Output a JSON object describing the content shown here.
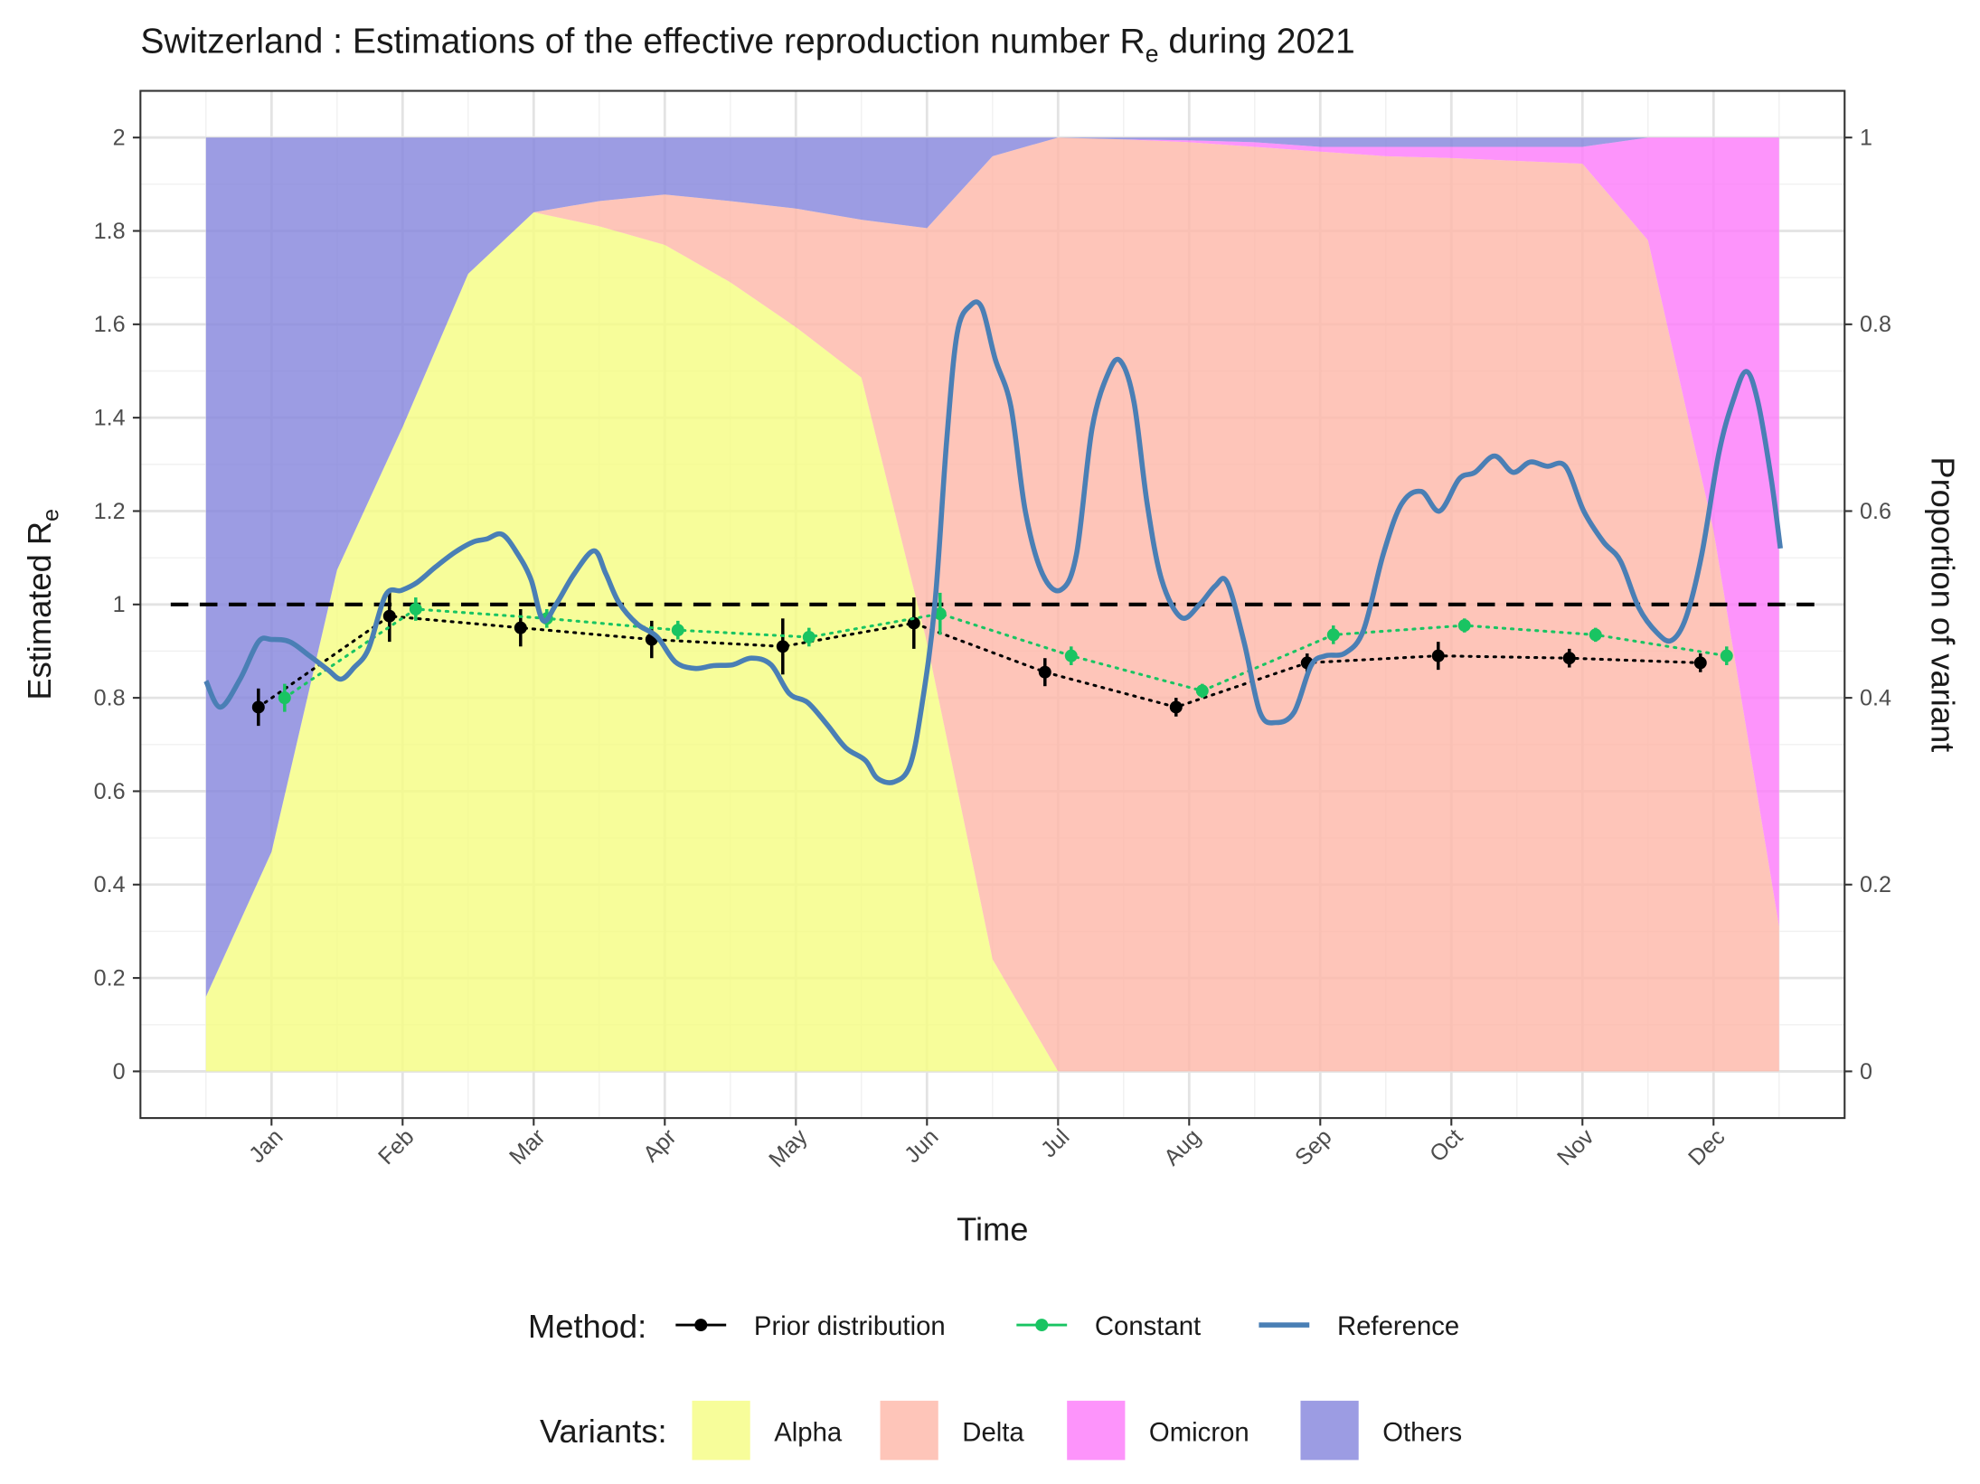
{
  "chart_data": {
    "type": "line",
    "title_parts": [
      "Switzerland : Estimations of the effective reproduction number R",
      "e",
      " during 2021"
    ],
    "xlabel": "Time",
    "ylabel_parts": [
      "Estimated R",
      "e"
    ],
    "y2label": "Proportion of variant",
    "xlim": [
      0,
      13
    ],
    "xticks": [
      {
        "value": 1,
        "label": "Jan"
      },
      {
        "value": 2,
        "label": "Feb"
      },
      {
        "value": 3,
        "label": "Mar"
      },
      {
        "value": 4,
        "label": "Apr"
      },
      {
        "value": 5,
        "label": "May"
      },
      {
        "value": 6,
        "label": "Jun"
      },
      {
        "value": 7,
        "label": "Jul"
      },
      {
        "value": 8,
        "label": "Aug"
      },
      {
        "value": 9,
        "label": "Sep"
      },
      {
        "value": 10,
        "label": "Oct"
      },
      {
        "value": 11,
        "label": "Nov"
      },
      {
        "value": 12,
        "label": "Dec"
      }
    ],
    "ylim": [
      -0.1,
      2.1
    ],
    "yticks": [
      0,
      0.2,
      0.4,
      0.6,
      0.8,
      1,
      1.2,
      1.4,
      1.6,
      1.8,
      2
    ],
    "y2lim": [
      -0.05,
      1.05
    ],
    "y2ticks": [
      0,
      0.2,
      0.4,
      0.6,
      0.8,
      1
    ],
    "grid": true,
    "hline": 1,
    "legend_position": "bottom",
    "method_legend_title": "Method:",
    "variant_legend_title": "Variants:",
    "series": [
      {
        "name": "Prior distribution",
        "type": "pointrange",
        "color": "#000000",
        "x": [
          1,
          2,
          3,
          4,
          5,
          6,
          7,
          8,
          9,
          10,
          11,
          12
        ],
        "values": [
          0.78,
          0.975,
          0.95,
          0.925,
          0.91,
          0.96,
          0.855,
          0.78,
          0.875,
          0.89,
          0.885,
          0.875
        ],
        "errors": [
          0.04,
          0.055,
          0.04,
          0.04,
          0.06,
          0.055,
          0.03,
          0.02,
          0.02,
          0.03,
          0.02,
          0.02
        ]
      },
      {
        "name": "Constant",
        "type": "pointrange",
        "color": "#19c462",
        "x": [
          1,
          2,
          3,
          4,
          5,
          6,
          7,
          8,
          9,
          10,
          11,
          12
        ],
        "values": [
          0.8,
          0.99,
          0.97,
          0.945,
          0.93,
          0.98,
          0.89,
          0.815,
          0.935,
          0.955,
          0.935,
          0.89
        ],
        "errors": [
          0.03,
          0.025,
          0.02,
          0.02,
          0.02,
          0.045,
          0.02,
          0.015,
          0.02,
          0.015,
          0.015,
          0.02
        ]
      },
      {
        "name": "Reference",
        "type": "line",
        "color": "#4a7fb5",
        "x": [
          0.5,
          0.61,
          0.76,
          0.9,
          1.0,
          1.14,
          1.29,
          1.43,
          1.53,
          1.63,
          1.74,
          1.87,
          1.99,
          2.11,
          2.25,
          2.4,
          2.54,
          2.64,
          2.76,
          2.88,
          2.98,
          3.07,
          3.17,
          3.31,
          3.46,
          3.55,
          3.65,
          3.79,
          3.94,
          4.08,
          4.23,
          4.37,
          4.52,
          4.66,
          4.81,
          4.95,
          5.09,
          5.24,
          5.38,
          5.53,
          5.62,
          5.75,
          5.87,
          5.96,
          6.06,
          6.15,
          6.23,
          6.33,
          6.42,
          6.52,
          6.64,
          6.75,
          6.88,
          7.02,
          7.14,
          7.26,
          7.39,
          7.48,
          7.58,
          7.68,
          7.79,
          7.94,
          8.08,
          8.2,
          8.29,
          8.42,
          8.54,
          8.66,
          8.8,
          8.93,
          9.04,
          9.19,
          9.33,
          9.48,
          9.62,
          9.77,
          9.91,
          10.06,
          10.18,
          10.33,
          10.47,
          10.6,
          10.73,
          10.87,
          11.01,
          11.16,
          11.29,
          11.43,
          11.57,
          11.68,
          11.79,
          11.91,
          12.04,
          12.15,
          12.25,
          12.34,
          12.44,
          12.51
        ],
        "values": [
          0.836,
          0.78,
          0.84,
          0.92,
          0.925,
          0.92,
          0.89,
          0.86,
          0.84,
          0.865,
          0.905,
          1.02,
          1.03,
          1.047,
          1.08,
          1.112,
          1.134,
          1.14,
          1.15,
          1.107,
          1.053,
          0.966,
          1.0,
          1.066,
          1.115,
          1.066,
          1.004,
          0.958,
          0.931,
          0.877,
          0.863,
          0.869,
          0.871,
          0.885,
          0.871,
          0.809,
          0.79,
          0.742,
          0.693,
          0.666,
          0.628,
          0.62,
          0.655,
          0.782,
          1.0,
          1.35,
          1.58,
          1.64,
          1.635,
          1.526,
          1.424,
          1.2,
          1.066,
          1.031,
          1.107,
          1.378,
          1.5,
          1.52,
          1.432,
          1.215,
          1.053,
          0.972,
          1.0,
          1.04,
          1.047,
          0.918,
          0.769,
          0.747,
          0.769,
          0.869,
          0.89,
          0.896,
          0.945,
          1.107,
          1.215,
          1.242,
          1.2,
          1.269,
          1.283,
          1.318,
          1.283,
          1.305,
          1.296,
          1.296,
          1.2,
          1.134,
          1.093,
          0.993,
          0.939,
          0.923,
          0.972,
          1.107,
          1.323,
          1.437,
          1.499,
          1.432,
          1.269,
          1.12
        ]
      }
    ],
    "variants": {
      "type": "area",
      "axis": "y2",
      "x": [
        0.5,
        1,
        1.5,
        2,
        2.5,
        3,
        3.5,
        4,
        4.5,
        5,
        5.5,
        6,
        6.5,
        7,
        7.5,
        8,
        8.5,
        9,
        9.5,
        10,
        10.5,
        11,
        11.5,
        12,
        12.5
      ],
      "series": [
        {
          "name": "Alpha",
          "color": "#f5fc81",
          "values": [
            0.08,
            0.235,
            0.537,
            0.69,
            0.854,
            0.92,
            0.905,
            0.885,
            0.845,
            0.797,
            0.743,
            0.459,
            0.12,
            0,
            0,
            0,
            0,
            0,
            0,
            0,
            0,
            0,
            0,
            0,
            0
          ]
        },
        {
          "name": "Delta",
          "color": "#feb6a7",
          "values": [
            0,
            0,
            0,
            0,
            0,
            0,
            0.027,
            0.054,
            0.087,
            0.127,
            0.169,
            0.444,
            0.86,
            1.0,
            0.998,
            0.995,
            0.99,
            0.985,
            0.98,
            0.978,
            0.975,
            0.972,
            0.89,
            0.579,
            0.155
          ]
        },
        {
          "name": "Omicron",
          "color": "#fc79fa",
          "values": [
            0,
            0,
            0,
            0,
            0,
            0,
            0,
            0,
            0,
            0,
            0,
            0,
            0,
            0,
            0,
            0.002,
            0.005,
            0.005,
            0.01,
            0.012,
            0.015,
            0.018,
            0.11,
            0.421,
            0.845
          ]
        },
        {
          "name": "Others",
          "color": "#8383dc",
          "values": [
            0.92,
            0.765,
            0.463,
            0.31,
            0.146,
            0.08,
            0.068,
            0.061,
            0.068,
            0.076,
            0.088,
            0.097,
            0.02,
            0,
            0.002,
            0.003,
            0.005,
            0.01,
            0.01,
            0.01,
            0.01,
            0.01,
            0,
            0,
            0
          ]
        }
      ]
    }
  }
}
